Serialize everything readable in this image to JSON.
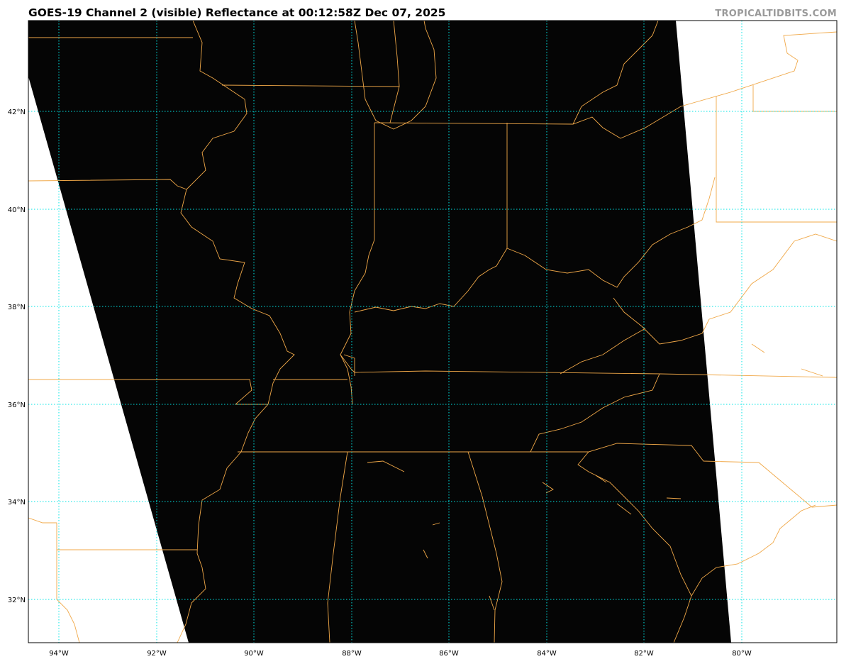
{
  "title": "GOES-19 Channel 2 (visible) Reflectance at 00:12:58Z Dec 07, 2025",
  "watermark": "TROPICALTIDBITS.COM",
  "map": {
    "projection": "plate carree",
    "lon_labels": [
      "94°W",
      "92°W",
      "90°W",
      "88°W",
      "86°W",
      "84°W",
      "82°W",
      "80°W"
    ],
    "lat_labels": [
      "42°N",
      "40°N",
      "38°N",
      "36°N",
      "34°N",
      "32°N"
    ],
    "gridline_color": "#00e5e5",
    "border_color": "#f0a848",
    "no_data_color": "#ffffff",
    "imagery_color": "#000000"
  }
}
